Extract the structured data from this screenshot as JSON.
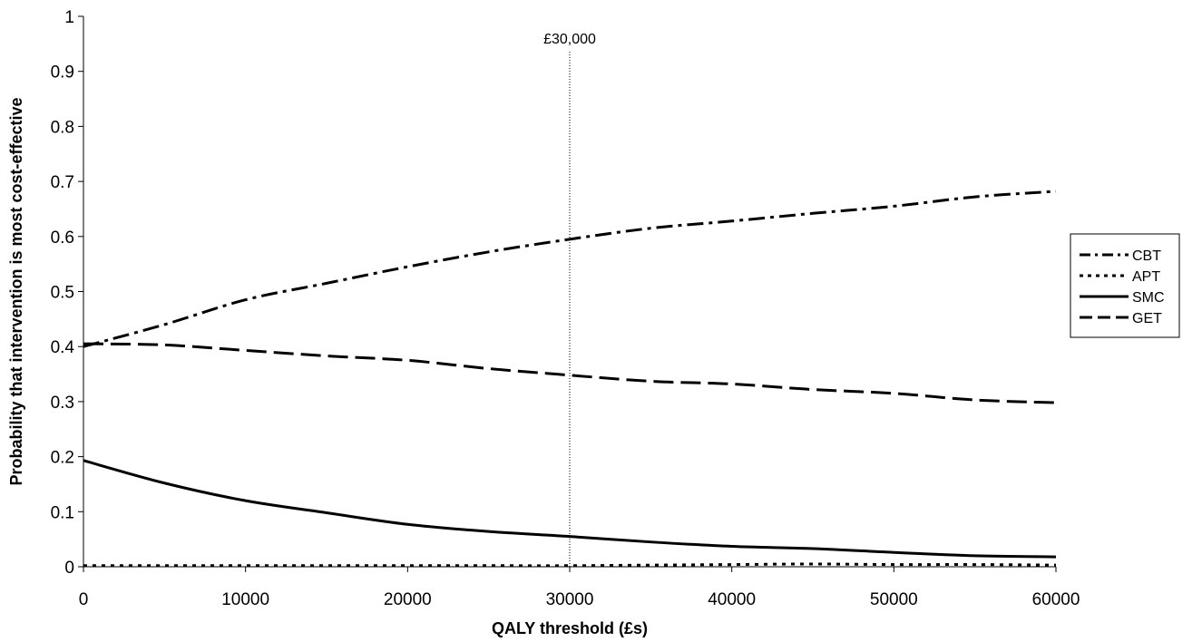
{
  "chart_data": {
    "type": "line",
    "xlabel": "QALY threshold (£s)",
    "ylabel": "Probability that intervention is most cost-effective",
    "xlim": [
      0,
      60000
    ],
    "ylim": [
      0,
      1
    ],
    "x_ticks": [
      "0",
      "10000",
      "20000",
      "30000",
      "40000",
      "50000",
      "60000"
    ],
    "y_ticks": [
      "0",
      "0.1",
      "0.2",
      "0.3",
      "0.4",
      "0.5",
      "0.6",
      "0.7",
      "0.8",
      "0.9",
      "1"
    ],
    "grid": false,
    "legend_position": "right",
    "x": [
      0,
      5000,
      10000,
      15000,
      20000,
      25000,
      30000,
      35000,
      40000,
      45000,
      50000,
      55000,
      60000
    ],
    "series": [
      {
        "name": "CBT",
        "style": "dash-dot",
        "values": [
          0.4,
          0.44,
          0.485,
          0.515,
          0.545,
          0.572,
          0.595,
          0.615,
          0.628,
          0.642,
          0.655,
          0.672,
          0.682
        ]
      },
      {
        "name": "APT",
        "style": "dotted",
        "values": [
          0.002,
          0.002,
          0.002,
          0.002,
          0.002,
          0.002,
          0.002,
          0.003,
          0.004,
          0.005,
          0.004,
          0.004,
          0.003
        ]
      },
      {
        "name": "SMC",
        "style": "solid",
        "values": [
          0.193,
          0.152,
          0.12,
          0.098,
          0.077,
          0.064,
          0.055,
          0.045,
          0.037,
          0.033,
          0.026,
          0.02,
          0.018
        ]
      },
      {
        "name": "GET",
        "style": "long-dash",
        "values": [
          0.405,
          0.403,
          0.393,
          0.383,
          0.375,
          0.36,
          0.348,
          0.337,
          0.332,
          0.322,
          0.315,
          0.303,
          0.298
        ]
      }
    ],
    "annotations": [
      {
        "text": "£30,000",
        "x": 30000,
        "style": "dotted-vertical-line"
      }
    ]
  }
}
